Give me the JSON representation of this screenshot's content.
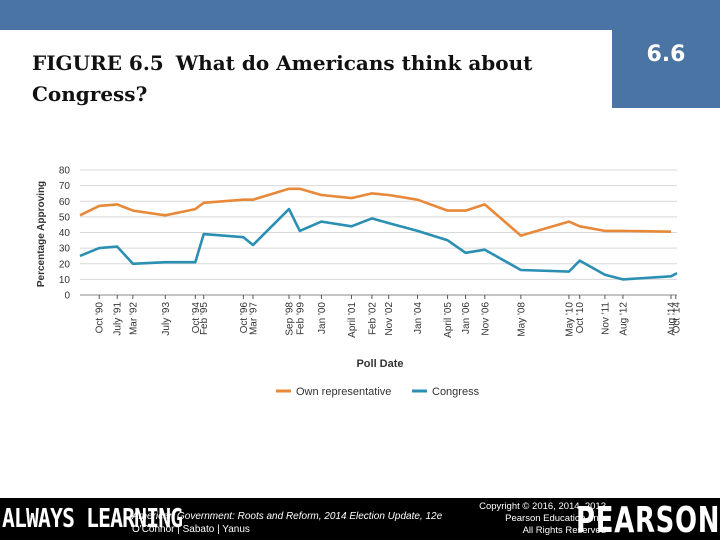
{
  "slide_number": "6.6",
  "title": {
    "figure_label": "FIGURE 6.5",
    "text": "What do Americans think about Congress?"
  },
  "footer": {
    "brand_left": "ALWAYS LEARNING",
    "book_title": "American Government: Roots and Reform, 2014 Election Update, 12e",
    "authors": "O'Connor | Sabato | Yanus",
    "copyright_line1": "Copyright © 2016, 2014, 2013",
    "copyright_line2": "Pearson Education, Inc.",
    "copyright_line3": "All Rights Reserved",
    "brand_right": "PEARSON"
  },
  "colors": {
    "own_representative": "#e8893a",
    "congress": "#2b8fb3",
    "grid": "#d8d8d8",
    "header": "#4a74a3"
  },
  "chart_data": {
    "type": "line",
    "ylabel": "Percentage Approving",
    "xlabel": "Poll Date",
    "ylim": [
      0,
      80
    ],
    "yticks": [
      0,
      10,
      20,
      30,
      40,
      50,
      60,
      70,
      80
    ],
    "grid": true,
    "legend_position": "bottom-center",
    "x_range": [
      1990.0,
      2014.85
    ],
    "x_ticks": [
      {
        "label": "Oct '90",
        "x": 1990.8
      },
      {
        "label": "July '91",
        "x": 1991.55
      },
      {
        "label": "Mar '92",
        "x": 1992.2
      },
      {
        "label": "July '93",
        "x": 1993.55
      },
      {
        "label": "Oct '94",
        "x": 1994.8
      },
      {
        "label": "Feb '95",
        "x": 1995.15
      },
      {
        "label": "Oct '96",
        "x": 1996.8
      },
      {
        "label": "Mar '97",
        "x": 1997.2
      },
      {
        "label": "Sep '98",
        "x": 1998.7
      },
      {
        "label": "Feb '99",
        "x": 1999.15
      },
      {
        "label": "Jan '00",
        "x": 2000.05
      },
      {
        "label": "April '01",
        "x": 2001.3
      },
      {
        "label": "Feb '02",
        "x": 2002.15
      },
      {
        "label": "Nov '02",
        "x": 2002.85
      },
      {
        "label": "Jan '04",
        "x": 2004.05
      },
      {
        "label": "April '05",
        "x": 2005.3
      },
      {
        "label": "Jan '06",
        "x": 2006.05
      },
      {
        "label": "Nov '06",
        "x": 2006.85
      },
      {
        "label": "May '08",
        "x": 2008.35
      },
      {
        "label": "May '10",
        "x": 2010.35
      },
      {
        "label": "Oct '10",
        "x": 2010.8
      },
      {
        "label": "Nov '11",
        "x": 2011.85
      },
      {
        "label": "Aug '12",
        "x": 2012.6
      },
      {
        "label": "Aug '14",
        "x": 2014.6
      },
      {
        "label": "Oct '14",
        "x": 2014.8
      }
    ],
    "series": [
      {
        "name": "Own representative",
        "color": "#e8893a",
        "points": [
          [
            1990.0,
            51
          ],
          [
            1990.8,
            57
          ],
          [
            1991.55,
            58
          ],
          [
            1992.2,
            54
          ],
          [
            1993.55,
            51
          ],
          [
            1994.8,
            55
          ],
          [
            1995.15,
            59
          ],
          [
            1996.8,
            61
          ],
          [
            1997.2,
            61
          ],
          [
            1998.7,
            68
          ],
          [
            1999.15,
            68
          ],
          [
            2000.05,
            64
          ],
          [
            2001.3,
            62
          ],
          [
            2002.15,
            65
          ],
          [
            2002.85,
            64
          ],
          [
            2004.05,
            61
          ],
          [
            2005.3,
            54
          ],
          [
            2006.05,
            54
          ],
          [
            2006.85,
            58
          ],
          [
            2008.35,
            38
          ],
          [
            2010.35,
            47
          ],
          [
            2010.8,
            44
          ],
          [
            2011.85,
            41
          ],
          [
            2012.6,
            41
          ],
          [
            2014.6,
            40.5
          ]
        ]
      },
      {
        "name": "Congress",
        "color": "#2b8fb3",
        "points": [
          [
            1990.0,
            25
          ],
          [
            1990.8,
            30
          ],
          [
            1991.55,
            31
          ],
          [
            1992.2,
            20
          ],
          [
            1993.55,
            21
          ],
          [
            1994.8,
            21
          ],
          [
            1995.15,
            39
          ],
          [
            1996.8,
            37
          ],
          [
            1997.2,
            32
          ],
          [
            1998.7,
            55
          ],
          [
            1999.15,
            41
          ],
          [
            2000.05,
            47
          ],
          [
            2001.3,
            44
          ],
          [
            2002.15,
            49
          ],
          [
            2002.85,
            46
          ],
          [
            2004.05,
            41
          ],
          [
            2005.3,
            35
          ],
          [
            2006.05,
            27
          ],
          [
            2006.85,
            29
          ],
          [
            2008.35,
            16
          ],
          [
            2010.35,
            15
          ],
          [
            2010.8,
            22
          ],
          [
            2011.85,
            13
          ],
          [
            2012.6,
            10
          ],
          [
            2014.6,
            12
          ],
          [
            2014.85,
            14
          ]
        ]
      }
    ]
  }
}
